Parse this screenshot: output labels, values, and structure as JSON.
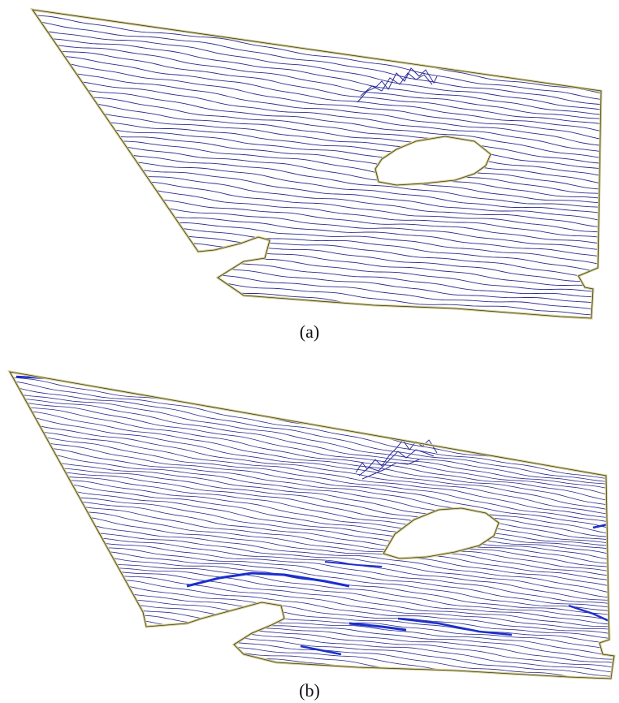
{
  "figure": {
    "panels": [
      {
        "id": "a",
        "caption": "(a)",
        "contour_count": 48
      },
      {
        "id": "b",
        "caption": "(b)",
        "contour_count": 64
      }
    ],
    "colors": {
      "contour": "#2b2b8f",
      "contour_dense": "#1a2fd0",
      "boundary": "#c9c07a",
      "boundary_inner": "#3a3a3a",
      "background": "#ffffff"
    }
  }
}
